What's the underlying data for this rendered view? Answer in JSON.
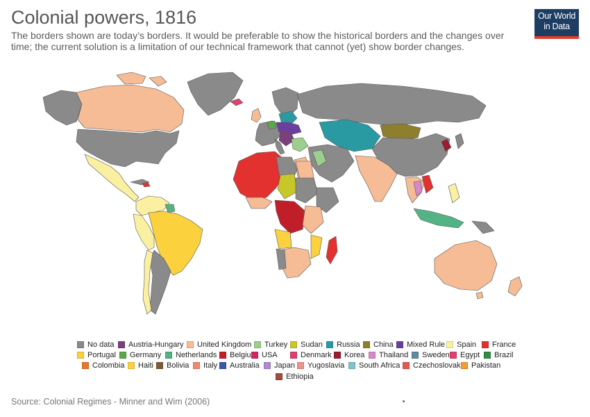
{
  "header": {
    "title": "Colonial powers, 1816",
    "subtitle": "The borders shown are today’s borders. It would be preferable to show the historical borders and the changes over time; the current solution is a limitation of our technical framework that cannot (yet) show border changes."
  },
  "logo": {
    "line1": "Our World",
    "line2": "in Data",
    "bg": "#1d3d63",
    "accent": "#e13d2b"
  },
  "legend": [
    {
      "label": "No data",
      "color": "#8a8a8a"
    },
    {
      "label": "Austria-Hungary",
      "color": "#7b3f7a"
    },
    {
      "label": "United Kingdom",
      "color": "#f5bc96"
    },
    {
      "label": "Turkey",
      "color": "#9ccf8e"
    },
    {
      "label": "Sudan",
      "color": "#c8c72a"
    },
    {
      "label": "Russia",
      "color": "#2a9aa2"
    },
    {
      "label": "China",
      "color": "#8e7f2e"
    },
    {
      "label": "Mixed Rule",
      "color": "#6b3fa0"
    },
    {
      "label": "Spain",
      "color": "#fbf0a2"
    },
    {
      "label": "France",
      "color": "#e3312f"
    },
    {
      "label": "Portugal",
      "color": "#fbd13e"
    },
    {
      "label": "Germany",
      "color": "#5aa94b"
    },
    {
      "label": "Netherlands",
      "color": "#54b384"
    },
    {
      "label": "Belgium",
      "color": "#c01f2a"
    },
    {
      "label": "USA",
      "color": "#d4265c"
    },
    {
      "label": "Denmark",
      "color": "#dc3f6e"
    },
    {
      "label": "Korea",
      "color": "#9b1b30"
    },
    {
      "label": "Thailand",
      "color": "#d68ac7"
    },
    {
      "label": "Sweden",
      "color": "#5e8ca1"
    },
    {
      "label": "Egypt",
      "color": "#e0416c"
    },
    {
      "label": "Brazil",
      "color": "#2e8c45"
    },
    {
      "label": "Colombia",
      "color": "#e8762b"
    },
    {
      "label": "Haiti",
      "color": "#fbd13e"
    },
    {
      "label": "Bolivia",
      "color": "#7d5b34"
    },
    {
      "label": "Italy",
      "color": "#ec8a6e"
    },
    {
      "label": "Australia",
      "color": "#3b57a6"
    },
    {
      "label": "Japan",
      "color": "#b08ad0"
    },
    {
      "label": "Yugoslavia",
      "color": "#e89489"
    },
    {
      "label": "South Africa",
      "color": "#7dc3c9"
    },
    {
      "label": "Czechoslovakia",
      "color": "#e05a4e"
    },
    {
      "label": "Pakistan",
      "color": "#f59b2f"
    },
    {
      "label": "Ethiopia",
      "color": "#a04d3e"
    }
  ],
  "source": "Source: Colonial Regimes - Minner and Wim (2006)"
}
